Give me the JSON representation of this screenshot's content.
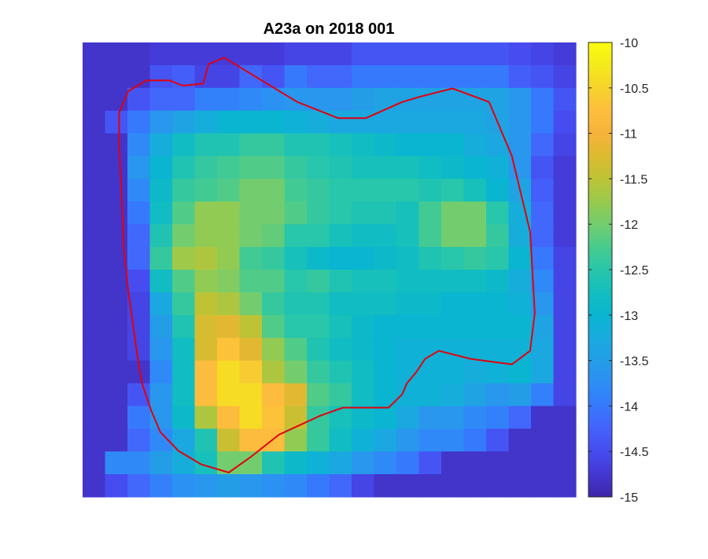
{
  "chart_data": {
    "type": "heatmap",
    "title": "A23a on 2018 001",
    "xlabel": "",
    "ylabel": "",
    "axes_visible": false,
    "grid": false,
    "colormap": "parula",
    "clim": [
      -15,
      -10
    ],
    "colorbar": {
      "location": "right",
      "ticks": [
        -10,
        -10.5,
        -11,
        -11.5,
        -12,
        -12.5,
        -13,
        -13.5,
        -14,
        -14.5,
        -15
      ],
      "tick_labels": [
        "-10",
        "-10.5",
        "-11",
        "-11.5",
        "-12",
        "-12.5",
        "-13",
        "-13.5",
        "-14",
        "-14.5",
        "-15"
      ]
    },
    "rows": 20,
    "cols": 22,
    "z": [
      [
        -14.8,
        -14.8,
        -14.8,
        -14.7,
        -14.7,
        -14.7,
        -14.7,
        -14.7,
        -14.7,
        -14.6,
        -14.6,
        -14.6,
        -14.4,
        -14.4,
        -14.4,
        -14.4,
        -14.4,
        -14.4,
        -14.4,
        -14.5,
        -14.6,
        -14.7
      ],
      [
        -14.8,
        -14.8,
        -14.8,
        -14.4,
        -14.3,
        -14.6,
        -14.6,
        -14.2,
        -14.4,
        -14.0,
        -14.2,
        -14.2,
        -14.0,
        -14.0,
        -14.0,
        -14.0,
        -14.0,
        -14.0,
        -14.0,
        -14.3,
        -14.4,
        -14.6
      ],
      [
        -14.8,
        -14.8,
        -14.4,
        -14.2,
        -14.2,
        -13.9,
        -13.9,
        -13.8,
        -13.7,
        -13.6,
        -13.6,
        -13.6,
        -13.5,
        -13.4,
        -13.4,
        -13.4,
        -13.4,
        -13.4,
        -13.4,
        -13.6,
        -14.0,
        -14.4
      ],
      [
        -14.8,
        -14.4,
        -14.0,
        -13.6,
        -13.4,
        -13.2,
        -13.0,
        -13.0,
        -13.0,
        -13.1,
        -13.2,
        -13.3,
        -13.3,
        -13.3,
        -13.3,
        -13.3,
        -13.3,
        -13.3,
        -13.4,
        -13.6,
        -14.0,
        -14.5
      ],
      [
        -14.8,
        -14.8,
        -13.8,
        -13.2,
        -12.8,
        -12.6,
        -12.6,
        -12.4,
        -12.4,
        -12.6,
        -12.6,
        -12.7,
        -12.8,
        -12.9,
        -13.0,
        -13.0,
        -13.0,
        -13.2,
        -13.3,
        -13.6,
        -14.2,
        -14.6
      ],
      [
        -14.8,
        -14.8,
        -13.6,
        -13.0,
        -12.6,
        -12.4,
        -12.3,
        -12.2,
        -12.2,
        -12.4,
        -12.5,
        -12.6,
        -12.7,
        -12.7,
        -12.7,
        -12.8,
        -12.9,
        -13.0,
        -13.1,
        -13.6,
        -14.4,
        -14.7
      ],
      [
        -14.8,
        -14.8,
        -13.8,
        -12.9,
        -12.4,
        -12.3,
        -12.2,
        -12.0,
        -12.0,
        -12.3,
        -12.4,
        -12.5,
        -12.5,
        -12.5,
        -12.5,
        -12.6,
        -12.5,
        -12.7,
        -13.0,
        -13.4,
        -14.3,
        -14.7
      ],
      [
        -14.8,
        -14.8,
        -14.0,
        -12.8,
        -12.2,
        -11.8,
        -11.8,
        -12.0,
        -12.0,
        -12.2,
        -12.4,
        -12.5,
        -12.6,
        -12.6,
        -12.7,
        -12.3,
        -12.0,
        -12.0,
        -12.5,
        -13.2,
        -14.2,
        -14.7
      ],
      [
        -14.8,
        -14.8,
        -14.2,
        -12.6,
        -12.0,
        -11.8,
        -11.8,
        -12.0,
        -12.1,
        -12.5,
        -12.5,
        -12.7,
        -12.8,
        -12.8,
        -12.7,
        -12.3,
        -12.0,
        -12.0,
        -12.4,
        -13.2,
        -14.2,
        -14.7
      ],
      [
        -14.8,
        -14.8,
        -14.2,
        -12.4,
        -11.7,
        -11.6,
        -11.8,
        -12.3,
        -12.4,
        -12.7,
        -12.9,
        -13.0,
        -13.0,
        -12.9,
        -12.8,
        -12.6,
        -12.5,
        -12.4,
        -12.5,
        -13.0,
        -14.0,
        -14.6
      ],
      [
        -14.8,
        -14.8,
        -14.5,
        -12.8,
        -12.2,
        -11.8,
        -11.9,
        -12.2,
        -12.2,
        -12.5,
        -12.4,
        -12.6,
        -12.7,
        -12.7,
        -12.8,
        -12.8,
        -12.8,
        -12.8,
        -12.9,
        -13.2,
        -13.8,
        -14.6
      ],
      [
        -14.8,
        -14.8,
        -14.6,
        -13.3,
        -12.4,
        -11.5,
        -11.6,
        -12.0,
        -12.4,
        -12.6,
        -12.6,
        -12.8,
        -12.8,
        -12.8,
        -12.9,
        -12.9,
        -13.0,
        -13.0,
        -13.0,
        -13.1,
        -13.6,
        -14.6
      ],
      [
        -14.8,
        -14.8,
        -14.6,
        -13.5,
        -12.6,
        -11.3,
        -11.2,
        -11.5,
        -12.2,
        -12.5,
        -12.5,
        -12.7,
        -12.9,
        -13.0,
        -13.0,
        -13.0,
        -13.0,
        -13.0,
        -13.0,
        -13.0,
        -13.4,
        -14.6
      ],
      [
        -14.8,
        -14.8,
        -14.6,
        -13.6,
        -12.8,
        -11.3,
        -10.7,
        -11.2,
        -11.8,
        -12.2,
        -12.6,
        -12.8,
        -12.9,
        -13.0,
        -13.1,
        -13.1,
        -13.1,
        -13.1,
        -13.1,
        -13.1,
        -13.3,
        -14.6
      ],
      [
        -14.8,
        -14.8,
        -14.8,
        -13.8,
        -12.8,
        -10.8,
        -10.4,
        -10.6,
        -11.6,
        -12.0,
        -12.4,
        -12.6,
        -12.8,
        -13.0,
        -13.1,
        -13.1,
        -13.1,
        -13.2,
        -13.1,
        -13.0,
        -13.3,
        -14.6
      ],
      [
        -14.8,
        -14.8,
        -14.4,
        -13.6,
        -12.8,
        -10.8,
        -10.4,
        -10.4,
        -10.8,
        -11.2,
        -12.2,
        -12.4,
        -12.8,
        -13.0,
        -13.1,
        -13.1,
        -13.2,
        -13.4,
        -13.6,
        -13.5,
        -13.9,
        -14.6
      ],
      [
        -14.8,
        -14.8,
        -14.0,
        -13.6,
        -12.9,
        -11.6,
        -10.8,
        -10.4,
        -10.7,
        -11.4,
        -12.4,
        -12.7,
        -12.9,
        -13.0,
        -13.3,
        -13.6,
        -13.6,
        -13.8,
        -13.9,
        -14.2,
        -14.8,
        -14.8
      ],
      [
        -14.8,
        -14.8,
        -14.2,
        -13.8,
        -13.3,
        -12.6,
        -11.4,
        -10.8,
        -10.8,
        -11.8,
        -12.4,
        -12.8,
        -13.1,
        -13.3,
        -13.6,
        -13.8,
        -13.8,
        -14.0,
        -14.4,
        -14.8,
        -14.8,
        -14.8
      ],
      [
        -14.8,
        -13.8,
        -13.8,
        -13.5,
        -13.2,
        -12.7,
        -12.0,
        -12.0,
        -12.6,
        -12.9,
        -13.1,
        -13.3,
        -13.6,
        -13.8,
        -14.0,
        -14.4,
        -14.8,
        -14.8,
        -14.8,
        -14.8,
        -14.8,
        -14.8
      ],
      [
        -14.8,
        -14.5,
        -14.2,
        -13.9,
        -13.7,
        -13.6,
        -13.5,
        -13.6,
        -13.7,
        -13.8,
        -14.0,
        -14.2,
        -14.6,
        -14.8,
        -14.8,
        -14.8,
        -14.8,
        -14.8,
        -14.8,
        -14.8,
        -14.8,
        -14.8
      ]
    ],
    "outline": {
      "color": "#e3000b",
      "points": [
        [
          0.44,
          0.96
        ],
        [
          0.56,
          0.6
        ],
        [
          0.9,
          0.48
        ],
        [
          1.68,
          0.88
        ],
        [
          2.5,
          1.3
        ],
        [
          3.4,
          1.6
        ],
        [
          4.0,
          1.6
        ],
        [
          4.8,
          1.3
        ],
        [
          5.2,
          1.2
        ],
        [
          5.9,
          1.05
        ],
        [
          6.7,
          1.3
        ],
        [
          7.2,
          2.3
        ],
        [
          7.6,
          3.7
        ],
        [
          7.7,
          5.2
        ],
        [
          7.6,
          5.9
        ],
        [
          7.2,
          6.15
        ],
        [
          6.3,
          6.05
        ],
        [
          5.6,
          5.9
        ],
        [
          5.3,
          6.05
        ],
        [
          5.1,
          6.3
        ],
        [
          4.9,
          6.5
        ],
        [
          4.8,
          6.7
        ],
        [
          4.5,
          6.95
        ],
        [
          3.5,
          6.95
        ],
        [
          3.0,
          7.1
        ],
        [
          2.1,
          7.45
        ],
        [
          1.5,
          7.85
        ],
        [
          1.0,
          8.15
        ],
        [
          0.4,
          8.0
        ],
        [
          -0.1,
          7.75
        ],
        [
          -0.5,
          7.4
        ],
        [
          -0.7,
          7.0
        ],
        [
          -0.9,
          6.5
        ],
        [
          -1.0,
          6.0
        ],
        [
          -1.1,
          5.4
        ],
        [
          -1.2,
          4.8
        ],
        [
          -1.25,
          4.4
        ],
        [
          -1.3,
          4.0
        ],
        [
          -1.32,
          3.5
        ],
        [
          -1.35,
          3.0
        ],
        [
          -1.38,
          2.5
        ],
        [
          -1.4,
          2.0
        ],
        [
          -1.4,
          1.5
        ],
        [
          -1.2,
          1.1
        ],
        [
          -0.8,
          0.9
        ],
        [
          -0.3,
          0.9
        ],
        [
          0.0,
          1.0
        ],
        [
          0.44,
          0.96
        ]
      ],
      "xlim": [
        -2.2,
        8.6
      ],
      "ylim": [
        0.2,
        8.6
      ]
    }
  }
}
